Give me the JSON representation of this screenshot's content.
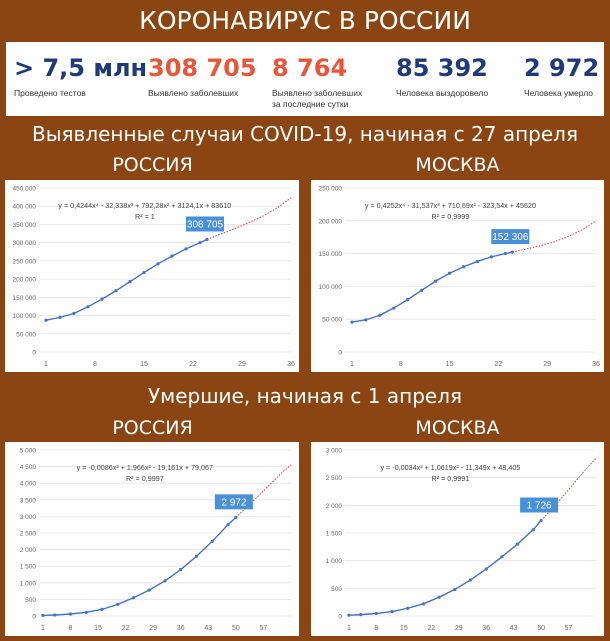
{
  "header": {
    "title": "КОРОНАВИРУС В РОССИИ"
  },
  "stats": [
    {
      "value": "> 7,5 млн",
      "label": "Проведено тестов",
      "color": "#1F3A7A"
    },
    {
      "value": "308 705",
      "label": "Выявлено заболевших",
      "color": "#E8563A"
    },
    {
      "value": "8 764",
      "label": "Выявлено заболевших за последние сутки",
      "color": "#E8563A"
    },
    {
      "value": "85 392",
      "label": "Человека выздоровело",
      "color": "#1F3A7A"
    },
    {
      "value": "2 972",
      "label": "Человека умерло",
      "color": "#1F3A7A"
    }
  ],
  "section1": {
    "title": "Выявленные случаи COVID-19, начиная с 27 апреля",
    "left": "РОССИЯ",
    "right": "МОСКВА"
  },
  "section2": {
    "title": "Умершие, начиная с 1 апреля",
    "left": "РОССИЯ",
    "right": "МОСКВА"
  },
  "colors": {
    "background": "#8B4513",
    "series": "#4472C4",
    "trend": "#E03C3C",
    "callout": "#4A90D9"
  },
  "chart_data": [
    {
      "type": "line",
      "equation": "y = 0,4244x⁴ - 32,338x³ + 792,28x² + 3124,1x + 83610",
      "r2": "R² = 1",
      "callout": "308 705",
      "x_ticks": [
        "1",
        "8",
        "15",
        "22",
        "29",
        "36"
      ],
      "y_ticks": [
        "0",
        "50 000",
        "100 000",
        "150 000",
        "200 000",
        "250 000",
        "300 000",
        "350 000",
        "400 000",
        "450 000"
      ],
      "xlim": [
        0,
        36
      ],
      "ylim": [
        0,
        450000
      ],
      "series": [
        {
          "x": [
            1,
            3,
            5,
            7,
            9,
            11,
            13,
            15,
            17,
            19,
            21,
            23,
            24
          ],
          "values": [
            87147,
            95000,
            106000,
            124000,
            145000,
            168000,
            193000,
            218000,
            242000,
            263000,
            283000,
            300000,
            308705
          ]
        }
      ],
      "trend": {
        "x": [
          24,
          26,
          28,
          30,
          32,
          34,
          36
        ],
        "values": [
          308705,
          324000,
          339000,
          355000,
          373000,
          395000,
          423000
        ]
      }
    },
    {
      "type": "line",
      "equation": "y = 0,4252x⁴ - 31,537x³ + 710,69x² - 323,54x + 45620",
      "r2": "R² = 0,9999",
      "callout": "152 306",
      "x_ticks": [
        "1",
        "8",
        "15",
        "22",
        "29",
        "36"
      ],
      "y_ticks": [
        "0",
        "50 000",
        "100 000",
        "150 000",
        "200 000",
        "250 000"
      ],
      "xlim": [
        0,
        36
      ],
      "ylim": [
        0,
        250000
      ],
      "series": [
        {
          "x": [
            1,
            3,
            5,
            7,
            9,
            11,
            13,
            15,
            17,
            19,
            21,
            23,
            24
          ],
          "values": [
            45600,
            49000,
            56000,
            67000,
            80000,
            94000,
            108000,
            120000,
            130000,
            138000,
            145000,
            150000,
            152306
          ]
        }
      ],
      "trend": {
        "x": [
          24,
          26,
          28,
          30,
          32,
          34,
          36
        ],
        "values": [
          152306,
          157000,
          162000,
          168000,
          176000,
          186000,
          200000
        ]
      }
    },
    {
      "type": "line",
      "equation": "y = -0,0086x³ + 1,966x² - 19,161x + 79,067",
      "r2": "R² = 0,9997",
      "callout": "2 972",
      "x_ticks": [
        "1",
        "8",
        "15",
        "22",
        "29",
        "36",
        "43",
        "50",
        "57"
      ],
      "y_ticks": [
        "0",
        "500",
        "1 000",
        "1 500",
        "2 000",
        "2 500",
        "3 000",
        "3 500",
        "4 000",
        "4 500",
        "5 000"
      ],
      "xlim": [
        0,
        64
      ],
      "ylim": [
        0,
        5000
      ],
      "series": [
        {
          "x": [
            1,
            4,
            8,
            12,
            16,
            20,
            24,
            28,
            32,
            36,
            40,
            44,
            48,
            50
          ],
          "values": [
            17,
            30,
            60,
            110,
            200,
            350,
            550,
            780,
            1060,
            1400,
            1800,
            2250,
            2750,
            2972
          ]
        }
      ],
      "trend": {
        "x": [
          50,
          53,
          56,
          59,
          62,
          64
        ],
        "values": [
          2972,
          3300,
          3650,
          4000,
          4350,
          4550
        ]
      }
    },
    {
      "type": "line",
      "equation": "y = -0,0034x³ + 1,0619x² - 11,349x + 48,405",
      "r2": "R² = 0,9991",
      "callout": "1 726",
      "x_ticks": [
        "1",
        "8",
        "15",
        "22",
        "29",
        "36",
        "43",
        "50",
        "57"
      ],
      "y_ticks": [
        "0",
        "500",
        "1 000",
        "1 500",
        "2 000",
        "2 500",
        "3 000"
      ],
      "xlim": [
        0,
        64
      ],
      "ylim": [
        0,
        3000
      ],
      "series": [
        {
          "x": [
            1,
            4,
            8,
            12,
            16,
            20,
            24,
            28,
            32,
            36,
            40,
            44,
            48,
            50
          ],
          "values": [
            15,
            25,
            45,
            80,
            140,
            220,
            340,
            480,
            650,
            850,
            1070,
            1300,
            1560,
            1726
          ]
        }
      ],
      "trend": {
        "x": [
          50,
          53,
          56,
          59,
          62,
          64
        ],
        "values": [
          1726,
          1950,
          2200,
          2450,
          2700,
          2850
        ]
      }
    }
  ]
}
